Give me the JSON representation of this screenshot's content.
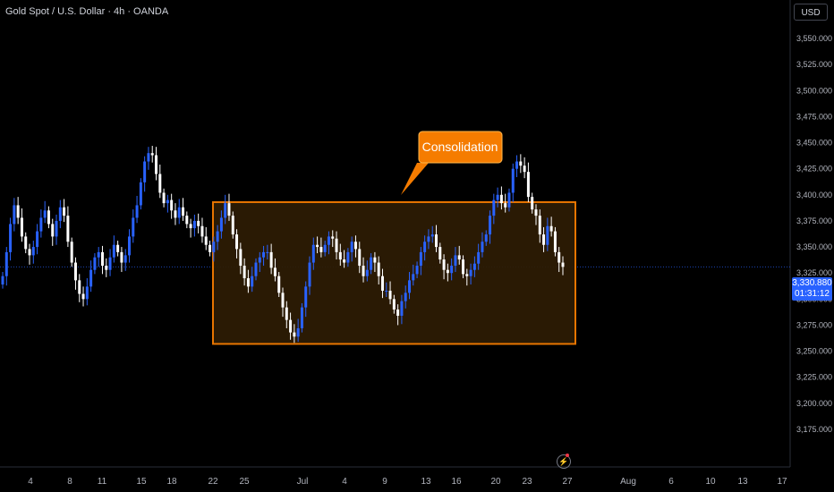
{
  "header": {
    "symbol_title": "Gold Spot / U.S. Dollar · 4h · OANDA",
    "currency_label": "USD"
  },
  "price_tag": {
    "price": "3,330.880",
    "countdown": "01:31:12",
    "color": "#2962ff"
  },
  "annotation": {
    "label": "Consolidation",
    "fill_color": "#f57c00",
    "range_top": 3393,
    "range_bottom": 3257,
    "range_fill": "#2d1c05"
  },
  "icons": {
    "bolt": "lightning-bolt-icon"
  },
  "chart_data": {
    "type": "candlestick",
    "title": "Gold Spot / U.S. Dollar · 4h · OANDA",
    "ylabel": "USD",
    "ylim": [
      3155,
      3575
    ],
    "y_ticks": [
      3175,
      3200,
      3225,
      3250,
      3275,
      3300,
      3325,
      3350,
      3375,
      3400,
      3425,
      3450,
      3475,
      3500,
      3525,
      3550
    ],
    "y_tick_labels": [
      "3,175.000",
      "3,200.000",
      "3,225.000",
      "3,250.000",
      "3,275.000",
      "3,300.000",
      "3,325.000",
      "3,350.000",
      "3,375.000",
      "3,400.000",
      "3,425.000",
      "3,450.000",
      "3,475.000",
      "3,500.000",
      "3,525.000",
      "3,550.000"
    ],
    "x_tick_labels": [
      "4",
      "8",
      "11",
      "15",
      "18",
      "22",
      "25",
      "Jul",
      "4",
      "9",
      "13",
      "16",
      "20",
      "23",
      "27",
      "Aug",
      "6",
      "10",
      "13",
      "17"
    ],
    "last_price": 3330.88,
    "up_color": "#2962ff",
    "down_color": "#ffffff",
    "closes": [
      3322,
      3345,
      3372,
      3390,
      3378,
      3360,
      3348,
      3342,
      3350,
      3365,
      3378,
      3385,
      3372,
      3360,
      3375,
      3388,
      3380,
      3355,
      3335,
      3318,
      3305,
      3300,
      3312,
      3328,
      3340,
      3345,
      3332,
      3328,
      3340,
      3352,
      3345,
      3335,
      3342,
      3360,
      3378,
      3390,
      3412,
      3432,
      3440,
      3438,
      3420,
      3402,
      3392,
      3395,
      3385,
      3378,
      3388,
      3380,
      3372,
      3368,
      3375,
      3370,
      3360,
      3352,
      3345,
      3355,
      3365,
      3378,
      3392,
      3380,
      3362,
      3348,
      3332,
      3320,
      3312,
      3322,
      3335,
      3340,
      3345,
      3345,
      3330,
      3322,
      3306,
      3292,
      3280,
      3268,
      3264,
      3272,
      3292,
      3312,
      3335,
      3352,
      3350,
      3345,
      3352,
      3360,
      3358,
      3345,
      3338,
      3335,
      3345,
      3355,
      3348,
      3332,
      3322,
      3328,
      3340,
      3335,
      3322,
      3308,
      3308,
      3300,
      3290,
      3284,
      3298,
      3306,
      3318,
      3324,
      3332,
      3345,
      3355,
      3360,
      3362,
      3350,
      3338,
      3328,
      3325,
      3332,
      3342,
      3338,
      3324,
      3322,
      3328,
      3334,
      3345,
      3355,
      3362,
      3380,
      3395,
      3400,
      3392,
      3388,
      3402,
      3425,
      3432,
      3428,
      3422,
      3398,
      3386,
      3380,
      3362,
      3352,
      3370,
      3365,
      3345,
      3335,
      3330.88
    ]
  }
}
